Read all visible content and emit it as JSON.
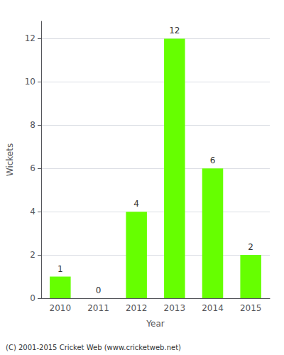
{
  "chart_data": {
    "type": "bar",
    "categories": [
      "2010",
      "2011",
      "2012",
      "2013",
      "2014",
      "2015"
    ],
    "values": [
      1,
      0,
      4,
      12,
      6,
      2
    ],
    "color": "#66ff00",
    "xlabel": "Year",
    "ylabel": "Wickets",
    "ylim": [
      0,
      12.8
    ],
    "yticks": [
      0,
      2,
      4,
      6,
      8,
      10,
      12
    ],
    "grid": true,
    "data_labels": true,
    "annotations": [
      "(C) 2001-2015 Cricket Web (www.cricketweb.net)"
    ]
  }
}
